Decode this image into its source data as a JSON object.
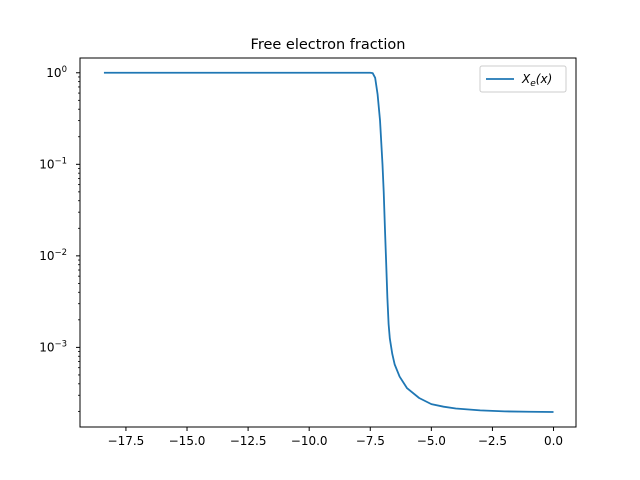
{
  "chart_data": {
    "type": "line",
    "title": "Free electron fraction",
    "xlabel": "",
    "ylabel": "",
    "xscale": "linear",
    "yscale": "log",
    "xlim": [
      -19.38,
      0.92
    ],
    "ylim": [
      0.000135,
      1.45
    ],
    "grid": false,
    "legend": {
      "position": "top-right",
      "entries": [
        "X_e(x)"
      ]
    },
    "x_ticks": [
      {
        "value": -17.5,
        "label": "−17.5"
      },
      {
        "value": -15.0,
        "label": "−15.0"
      },
      {
        "value": -12.5,
        "label": "−12.5"
      },
      {
        "value": -10.0,
        "label": "−10.0"
      },
      {
        "value": -7.5,
        "label": "−7.5"
      },
      {
        "value": -5.0,
        "label": "−5.0"
      },
      {
        "value": -2.5,
        "label": "−2.5"
      },
      {
        "value": 0.0,
        "label": "0.0"
      }
    ],
    "y_ticks": [
      {
        "value": 1,
        "base": "10",
        "exp": "0"
      },
      {
        "value": 0.1,
        "base": "10",
        "exp": "−1"
      },
      {
        "value": 0.01,
        "base": "10",
        "exp": "−2"
      },
      {
        "value": 0.001,
        "base": "10",
        "exp": "−3"
      }
    ],
    "series": [
      {
        "name": "X_e(x)",
        "color": "#1f77b4",
        "x": [
          -18.4,
          -15.0,
          -12.0,
          -10.0,
          -8.0,
          -7.5,
          -7.4,
          -7.3,
          -7.2,
          -7.1,
          -7.0,
          -6.95,
          -6.9,
          -6.85,
          -6.8,
          -6.75,
          -6.7,
          -6.6,
          -6.5,
          -6.3,
          -6.0,
          -5.5,
          -5.0,
          -4.5,
          -4.0,
          -3.0,
          -2.0,
          -1.0,
          0.0
        ],
        "values": [
          1.0,
          1.0,
          1.0,
          1.0,
          1.0,
          1.0,
          0.99,
          0.88,
          0.58,
          0.3,
          0.1,
          0.05,
          0.02,
          0.0085,
          0.0035,
          0.0018,
          0.00125,
          0.00085,
          0.00065,
          0.00048,
          0.00036,
          0.00028,
          0.00024,
          0.000225,
          0.000215,
          0.000205,
          0.0002,
          0.000198,
          0.000197
        ]
      }
    ]
  }
}
